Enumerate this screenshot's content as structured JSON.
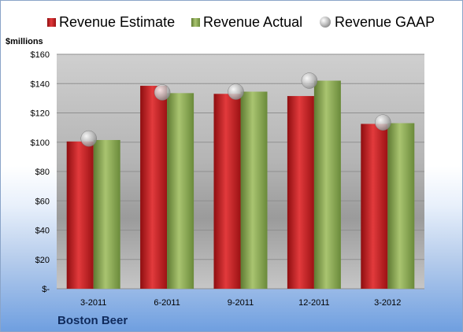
{
  "chart_data": {
    "type": "bar",
    "title": "",
    "ylabel": "$millions",
    "xlabel": "",
    "categories": [
      "3-2011",
      "6-2011",
      "9-2011",
      "12-2011",
      "3-2012"
    ],
    "series": [
      {
        "name": "Revenue Estimate",
        "kind": "bar",
        "values": [
          100.5,
          138.5,
          133,
          131.5,
          112.5
        ]
      },
      {
        "name": "Revenue Actual",
        "kind": "bar",
        "values": [
          101.5,
          133.5,
          134.5,
          142,
          113
        ]
      },
      {
        "name": "Revenue GAAP",
        "kind": "marker",
        "values": [
          102.5,
          134,
          134.5,
          142,
          113.5
        ]
      }
    ],
    "ylim": [
      0,
      160
    ],
    "yticks": [
      0,
      20,
      40,
      60,
      80,
      100,
      120,
      140,
      160
    ],
    "ytick_labels": [
      "$-",
      "$20",
      "$40",
      "$60",
      "$80",
      "$100",
      "$120",
      "$140",
      "$160"
    ],
    "legend_position": "top",
    "grid": true,
    "colors": {
      "estimate": "#c0181c",
      "actual": "#8aa650",
      "gaap": "#c8c8c8"
    }
  },
  "footer": {
    "company": "Boston Beer"
  }
}
